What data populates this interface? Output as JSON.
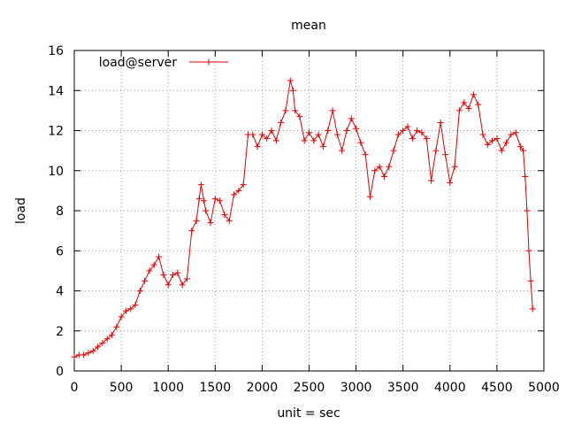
{
  "chart_data": {
    "type": "line",
    "title": "mean",
    "xlabel": "unit = sec",
    "ylabel": "load",
    "xlim": [
      0,
      5000
    ],
    "ylim": [
      0,
      16
    ],
    "xticks": [
      0,
      500,
      1000,
      1500,
      2000,
      2500,
      3000,
      3500,
      4000,
      4500,
      5000
    ],
    "yticks": [
      0,
      2,
      4,
      6,
      8,
      10,
      12,
      14,
      16
    ],
    "grid": true,
    "legend_position": "top-left",
    "marker": "plus",
    "series": [
      {
        "name": "load@server",
        "color": "#e00000",
        "x": [
          0,
          50,
          100,
          150,
          200,
          250,
          300,
          350,
          400,
          450,
          500,
          550,
          600,
          650,
          700,
          750,
          800,
          850,
          900,
          950,
          1000,
          1050,
          1100,
          1150,
          1200,
          1250,
          1300,
          1330,
          1350,
          1380,
          1400,
          1450,
          1500,
          1550,
          1600,
          1650,
          1700,
          1750,
          1800,
          1850,
          1900,
          1950,
          2000,
          2050,
          2100,
          2150,
          2200,
          2250,
          2300,
          2330,
          2350,
          2400,
          2450,
          2500,
          2550,
          2600,
          2650,
          2700,
          2750,
          2800,
          2850,
          2900,
          2950,
          3000,
          3050,
          3100,
          3150,
          3200,
          3250,
          3300,
          3350,
          3400,
          3450,
          3500,
          3550,
          3600,
          3650,
          3700,
          3750,
          3800,
          3850,
          3900,
          3950,
          4000,
          4050,
          4100,
          4150,
          4200,
          4250,
          4300,
          4350,
          4400,
          4450,
          4500,
          4550,
          4600,
          4650,
          4700,
          4750,
          4780,
          4800,
          4820,
          4840,
          4860,
          4880
        ],
        "y": [
          0.7,
          0.8,
          0.8,
          0.9,
          1.0,
          1.2,
          1.4,
          1.6,
          1.8,
          2.2,
          2.7,
          3.0,
          3.1,
          3.3,
          4.0,
          4.5,
          5.0,
          5.3,
          5.7,
          4.8,
          4.3,
          4.8,
          4.9,
          4.3,
          4.6,
          7.0,
          7.5,
          8.6,
          9.3,
          8.5,
          8.0,
          7.4,
          8.6,
          8.5,
          7.8,
          7.5,
          8.8,
          9.0,
          9.3,
          11.8,
          11.8,
          11.2,
          11.8,
          11.6,
          12.0,
          11.5,
          12.4,
          13.0,
          14.5,
          14.0,
          13.0,
          12.7,
          11.5,
          11.9,
          11.5,
          11.8,
          11.2,
          12.0,
          13.0,
          11.8,
          11.0,
          12.0,
          12.6,
          12.1,
          11.4,
          10.8,
          8.7,
          10.0,
          10.2,
          9.7,
          10.2,
          11.0,
          11.8,
          12.0,
          12.2,
          11.6,
          12.0,
          11.9,
          11.6,
          9.5,
          11.0,
          12.4,
          10.8,
          9.4,
          10.2,
          13.0,
          13.4,
          13.1,
          13.8,
          13.3,
          11.8,
          11.3,
          11.5,
          11.6,
          11.0,
          11.4,
          11.8,
          11.9,
          11.2,
          11.0,
          9.7,
          8.0,
          6.0,
          4.5,
          3.1
        ]
      }
    ]
  }
}
